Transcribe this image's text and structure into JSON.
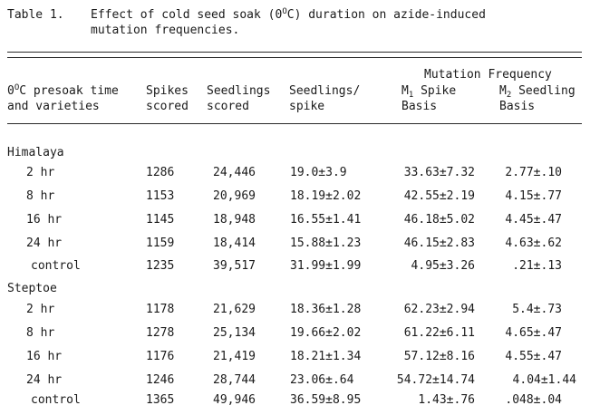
{
  "caption": {
    "label": "Table 1.",
    "line1": "Effect of cold seed soak (0",
    "line1_sup": "O",
    "line1_rest": "C) duration on azide-induced",
    "line2": "mutation frequencies."
  },
  "headers": {
    "col1_line1_pre": "0",
    "col1_line1_sup": "O",
    "col1_line1_rest": "C presoak time",
    "col1_line2": "and varieties",
    "spikes_line1": "Spikes",
    "spikes_line2": "scored",
    "seedlings_line1": "Seedlings",
    "seedlings_line2": "scored",
    "per_spike_line1": "Seedlings/",
    "per_spike_line2": "spike",
    "mutation_group": "Mutation Frequency",
    "m1_prefix": "M",
    "m1_sub": "1",
    "m1_rest": " Spike",
    "m1_line2": "Basis",
    "m2_prefix": "M",
    "m2_sub": "2",
    "m2_rest": " Seedling",
    "m2_line2": "Basis"
  },
  "groups": [
    {
      "name": "Himalaya",
      "rows": [
        {
          "time": "2 hr",
          "spikes": "1286",
          "seedlings": "24,446",
          "per_spike": "19.0±3.9",
          "m1": "33.63±7.32",
          "m2": "2.77±.10"
        },
        {
          "time": "8 hr",
          "spikes": "1153",
          "seedlings": "20,969",
          "per_spike": "18.19±2.02",
          "m1": "42.55±2.19",
          "m2": "4.15±.77"
        },
        {
          "time": "16 hr",
          "spikes": "1145",
          "seedlings": "18,948",
          "per_spike": "16.55±1.41",
          "m1": "46.18±5.02",
          "m2": "4.45±.47"
        },
        {
          "time": "24 hr",
          "spikes": "1159",
          "seedlings": "18,414",
          "per_spike": "15.88±1.23",
          "m1": "46.15±2.83",
          "m2": "4.63±.62"
        },
        {
          "time": "control",
          "spikes": "1235",
          "seedlings": "39,517",
          "per_spike": "31.99±1.99",
          "m1": "4.95±3.26",
          "m2": ".21±.13"
        }
      ]
    },
    {
      "name": "Steptoe",
      "rows": [
        {
          "time": "2 hr",
          "spikes": "1178",
          "seedlings": "21,629",
          "per_spike": "18.36±1.28",
          "m1": "62.23±2.94",
          "m2": "5.4±.73"
        },
        {
          "time": "8 hr",
          "spikes": "1278",
          "seedlings": "25,134",
          "per_spike": "19.66±2.02",
          "m1": "61.22±6.11",
          "m2": "4.65±.47"
        },
        {
          "time": "16 hr",
          "spikes": "1176",
          "seedlings": "21,419",
          "per_spike": "18.21±1.34",
          "m1": "57.12±8.16",
          "m2": "4.55±.47"
        },
        {
          "time": "24 hr",
          "spikes": "1246",
          "seedlings": "28,744",
          "per_spike": "23.06±.64",
          "m1": "54.72±14.74",
          "m2": "4.04±1.44"
        },
        {
          "time": "control",
          "spikes": "1365",
          "seedlings": "49,946",
          "per_spike": "36.59±8.95",
          "m1": "1.43±.76",
          "m2": ".048±.04"
        }
      ]
    }
  ]
}
